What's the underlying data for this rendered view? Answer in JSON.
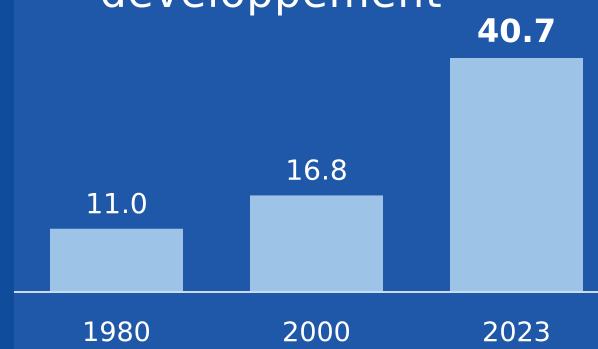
{
  "chart_data": {
    "type": "bar",
    "title": "developpement",
    "categories": [
      "1980",
      "2000",
      "2023"
    ],
    "values": [
      11.0,
      16.8,
      40.7
    ],
    "value_labels": [
      "11.0",
      "16.8",
      "40.7"
    ],
    "highlight_index": 2,
    "ylim": [
      0,
      40.7
    ],
    "grid": false,
    "colors": {
      "bar": "#9dc3e6",
      "background": "#1f58a8",
      "baseline": "#c9dcf0",
      "text": "#ffffff"
    }
  }
}
